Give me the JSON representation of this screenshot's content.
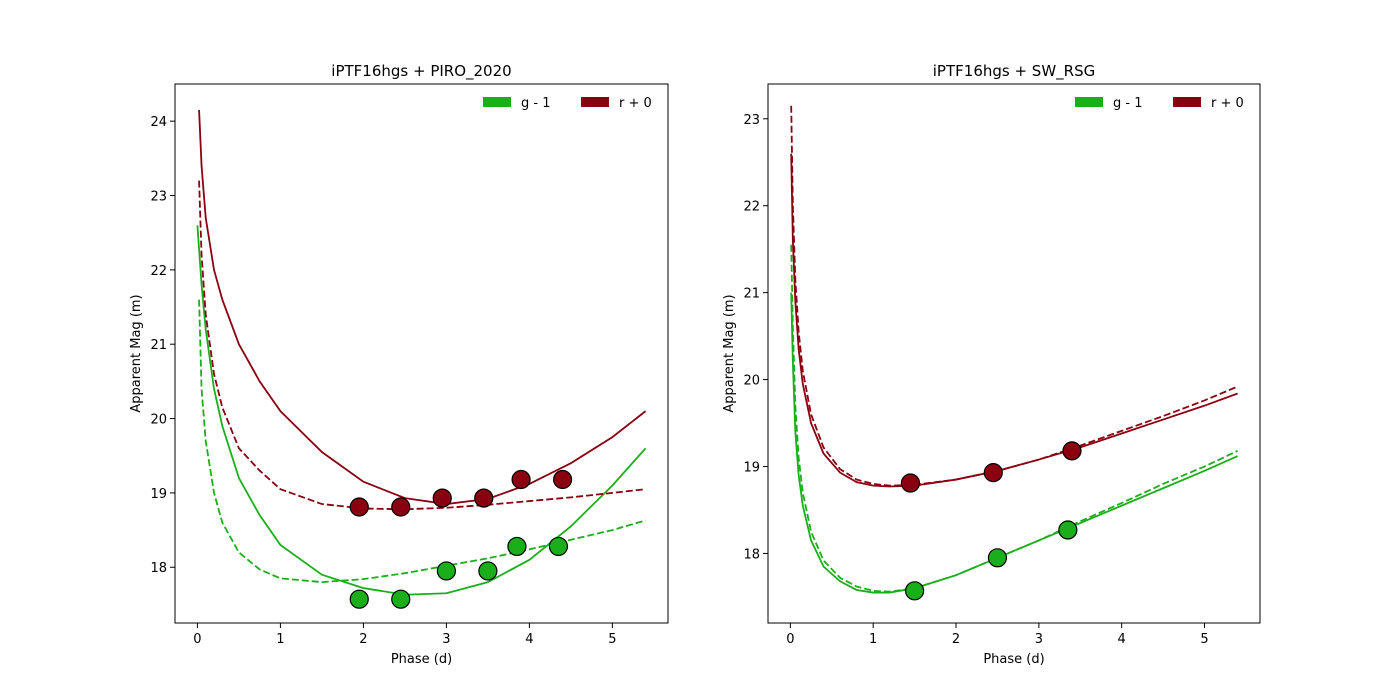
{
  "chart_data": [
    {
      "type": "line",
      "title": "iPTF16hgs + PIRO_2020",
      "xlabel": "Phase (d)",
      "ylabel": "Apparent Mag (m)",
      "xlim": [
        -0.27,
        5.67
      ],
      "ylim": [
        17.25,
        24.5
      ],
      "y_inverted": false,
      "xticks": [
        0,
        1,
        2,
        3,
        4,
        5
      ],
      "yticks": [
        18,
        19,
        20,
        21,
        22,
        23,
        24
      ],
      "grid": false,
      "legend": {
        "placement": "top-right",
        "columns": 2
      },
      "series": [
        {
          "name": "g - 1",
          "kind": "model-solid",
          "color": "#1aaf1a",
          "x": [
            0.0,
            0.05,
            0.1,
            0.2,
            0.3,
            0.5,
            0.75,
            1.0,
            1.5,
            2.0,
            2.5,
            3.0,
            3.5,
            4.0,
            4.5,
            5.0,
            5.4
          ],
          "y": [
            22.6,
            21.8,
            21.2,
            20.4,
            19.9,
            19.2,
            18.7,
            18.3,
            17.9,
            17.72,
            17.63,
            17.65,
            17.8,
            18.1,
            18.55,
            19.1,
            19.6
          ]
        },
        {
          "name": "",
          "kind": "model-dashed",
          "color": "#1aaf1a",
          "x": [
            0.02,
            0.05,
            0.1,
            0.2,
            0.3,
            0.5,
            0.75,
            1.0,
            1.5,
            2.0,
            2.5,
            3.0,
            3.5,
            4.0,
            4.5,
            5.0,
            5.4
          ],
          "y": [
            21.6,
            20.4,
            19.7,
            19.0,
            18.6,
            18.2,
            17.97,
            17.85,
            17.8,
            17.84,
            17.92,
            18.02,
            18.12,
            18.24,
            18.37,
            18.5,
            18.63
          ]
        },
        {
          "name": "",
          "kind": "observed",
          "color": "#1aaf1a",
          "x": [
            1.95,
            2.45,
            3.0,
            3.5,
            3.85,
            4.35
          ],
          "y": [
            17.57,
            17.57,
            17.95,
            17.95,
            18.28,
            18.28
          ]
        },
        {
          "name": "r + 0",
          "kind": "model-solid",
          "color": "#8b0011",
          "x": [
            0.02,
            0.05,
            0.1,
            0.2,
            0.3,
            0.5,
            0.75,
            1.0,
            1.5,
            2.0,
            2.5,
            3.0,
            3.5,
            4.0,
            4.5,
            5.0,
            5.4
          ],
          "y": [
            24.15,
            23.4,
            22.7,
            22.0,
            21.6,
            21.0,
            20.5,
            20.1,
            19.55,
            19.15,
            18.93,
            18.85,
            18.92,
            19.12,
            19.4,
            19.75,
            20.1
          ]
        },
        {
          "name": "",
          "kind": "model-dashed",
          "color": "#8b0011",
          "x": [
            0.02,
            0.05,
            0.1,
            0.2,
            0.3,
            0.5,
            0.75,
            1.0,
            1.5,
            2.0,
            2.5,
            3.0,
            3.5,
            4.0,
            4.5,
            5.0,
            5.4
          ],
          "y": [
            23.2,
            22.2,
            21.4,
            20.6,
            20.15,
            19.6,
            19.3,
            19.05,
            18.85,
            18.79,
            18.78,
            18.8,
            18.84,
            18.89,
            18.94,
            19.0,
            19.05
          ]
        },
        {
          "name": "",
          "kind": "observed",
          "color": "#8b0011",
          "x": [
            1.95,
            2.45,
            2.95,
            3.45,
            3.9,
            4.4
          ],
          "y": [
            18.81,
            18.81,
            18.93,
            18.93,
            19.18,
            19.18
          ]
        }
      ]
    },
    {
      "type": "line",
      "title": "iPTF16hgs + SW_RSG",
      "xlabel": "Phase (d)",
      "ylabel": "Apparent Mag (m)",
      "xlim": [
        -0.27,
        5.67
      ],
      "ylim": [
        17.2,
        23.4
      ],
      "y_inverted": false,
      "xticks": [
        0,
        1,
        2,
        3,
        4,
        5
      ],
      "yticks": [
        18,
        19,
        20,
        21,
        22,
        23
      ],
      "grid": false,
      "legend": {
        "placement": "top-right",
        "columns": 2
      },
      "series": [
        {
          "name": "g - 1",
          "kind": "model-solid",
          "color": "#1aaf1a",
          "x": [
            0.01,
            0.03,
            0.06,
            0.1,
            0.15,
            0.25,
            0.4,
            0.6,
            0.8,
            1.0,
            1.2,
            1.5,
            2.0,
            2.5,
            3.0,
            3.5,
            4.0,
            4.5,
            5.0,
            5.4
          ],
          "y": [
            21.0,
            20.2,
            19.4,
            18.9,
            18.55,
            18.15,
            17.85,
            17.68,
            17.58,
            17.55,
            17.55,
            17.6,
            17.75,
            17.95,
            18.15,
            18.35,
            18.55,
            18.75,
            18.95,
            19.12
          ]
        },
        {
          "name": "",
          "kind": "model-dashed",
          "color": "#1aaf1a",
          "x": [
            0.01,
            0.03,
            0.06,
            0.1,
            0.15,
            0.25,
            0.4,
            0.6,
            0.8,
            1.0,
            1.2,
            1.5,
            2.0,
            2.5,
            3.0,
            3.5,
            4.0,
            4.5,
            5.0,
            5.4
          ],
          "y": [
            21.55,
            20.6,
            19.7,
            19.1,
            18.7,
            18.25,
            17.92,
            17.72,
            17.62,
            17.57,
            17.56,
            17.6,
            17.75,
            17.95,
            18.15,
            18.37,
            18.58,
            18.8,
            19.0,
            19.18
          ]
        },
        {
          "name": "",
          "kind": "observed",
          "color": "#1aaf1a",
          "x": [
            1.5,
            2.5,
            3.35
          ],
          "y": [
            17.57,
            17.95,
            18.27
          ]
        },
        {
          "name": "r + 0",
          "kind": "model-solid",
          "color": "#8b0011",
          "x": [
            0.01,
            0.03,
            0.06,
            0.1,
            0.15,
            0.25,
            0.4,
            0.6,
            0.8,
            1.0,
            1.2,
            1.5,
            2.0,
            2.5,
            3.0,
            3.5,
            4.0,
            4.5,
            5.0,
            5.4
          ],
          "y": [
            22.6,
            21.6,
            20.9,
            20.35,
            19.95,
            19.5,
            19.15,
            18.93,
            18.82,
            18.78,
            18.77,
            18.78,
            18.85,
            18.95,
            19.08,
            19.22,
            19.38,
            19.54,
            19.7,
            19.84
          ]
        },
        {
          "name": "",
          "kind": "model-dashed",
          "color": "#8b0011",
          "x": [
            0.01,
            0.03,
            0.06,
            0.1,
            0.15,
            0.25,
            0.4,
            0.6,
            0.8,
            1.0,
            1.2,
            1.5,
            2.0,
            2.5,
            3.0,
            3.5,
            4.0,
            4.5,
            5.0,
            5.4
          ],
          "y": [
            23.15,
            22.0,
            21.15,
            20.55,
            20.1,
            19.6,
            19.22,
            18.97,
            18.85,
            18.8,
            18.78,
            18.79,
            18.85,
            18.95,
            19.08,
            19.24,
            19.41,
            19.58,
            19.76,
            19.92
          ]
        },
        {
          "name": "",
          "kind": "observed",
          "color": "#8b0011",
          "x": [
            1.45,
            2.45,
            3.4
          ],
          "y": [
            18.81,
            18.93,
            19.18
          ]
        }
      ]
    }
  ]
}
